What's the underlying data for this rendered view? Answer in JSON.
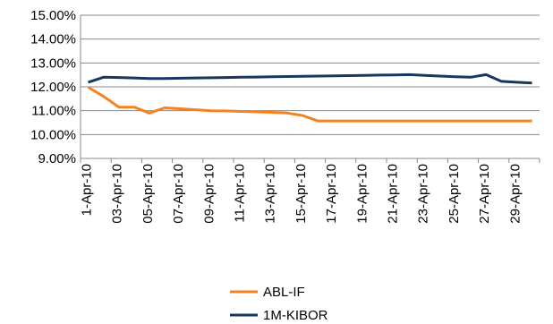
{
  "chart_data": {
    "type": "line",
    "title": "",
    "xlabel": "",
    "ylabel": "",
    "ylim": [
      0.09,
      0.15
    ],
    "y_ticks": [
      "9.00%",
      "10.00%",
      "11.00%",
      "12.00%",
      "13.00%",
      "14.00%",
      "15.00%"
    ],
    "x_ticks": [
      "1-Apr-10",
      "03-Apr-10",
      "05-Apr-10",
      "07-Apr-10",
      "09-Apr-10",
      "11-Apr-10",
      "13-Apr-10",
      "15-Apr-10",
      "17-Apr-10",
      "19-Apr-10",
      "21-Apr-10",
      "23-Apr-10",
      "25-Apr-10",
      "27-Apr-10",
      "29-Apr-10"
    ],
    "x": [
      "1-Apr-10",
      "2-Apr-10",
      "3-Apr-10",
      "4-Apr-10",
      "5-Apr-10",
      "6-Apr-10",
      "7-Apr-10",
      "8-Apr-10",
      "9-Apr-10",
      "10-Apr-10",
      "11-Apr-10",
      "12-Apr-10",
      "13-Apr-10",
      "14-Apr-10",
      "15-Apr-10",
      "16-Apr-10",
      "17-Apr-10",
      "18-Apr-10",
      "19-Apr-10",
      "20-Apr-10",
      "21-Apr-10",
      "22-Apr-10",
      "23-Apr-10",
      "24-Apr-10",
      "25-Apr-10",
      "26-Apr-10",
      "27-Apr-10",
      "28-Apr-10",
      "29-Apr-10",
      "30-Apr-10"
    ],
    "series": [
      {
        "name": "ABL-IF",
        "color": "#f58220",
        "values": [
          0.1198,
          0.116,
          0.1115,
          0.1115,
          0.109,
          0.1112,
          0.1108,
          0.1104,
          0.11,
          0.1099,
          0.1097,
          0.1095,
          0.1093,
          0.109,
          0.108,
          0.1057,
          0.1057,
          0.1057,
          0.1057,
          0.1057,
          0.1057,
          0.1057,
          0.1057,
          0.1057,
          0.1057,
          0.1057,
          0.1057,
          0.1057,
          0.1057,
          0.1057
        ]
      },
      {
        "name": "1M-KIBOR",
        "color": "#17375e",
        "values": [
          0.1219,
          0.124,
          0.1239,
          0.1237,
          0.1235,
          0.1235,
          0.1236,
          0.1237,
          0.1238,
          0.1239,
          0.124,
          0.1241,
          0.1242,
          0.1243,
          0.1244,
          0.1245,
          0.1246,
          0.1247,
          0.1248,
          0.1249,
          0.125,
          0.1251,
          0.1248,
          0.1245,
          0.1242,
          0.124,
          0.1251,
          0.1223,
          0.1219,
          0.1216
        ]
      }
    ],
    "legend_position": "bottom",
    "grid": "horizontal"
  }
}
